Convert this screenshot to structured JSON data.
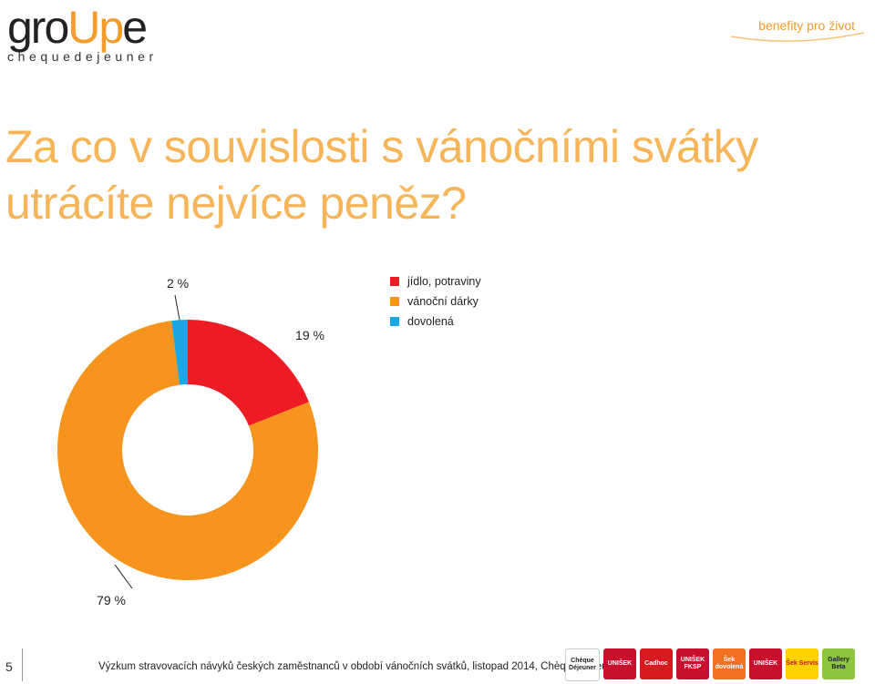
{
  "header": {
    "logo_main": "gro",
    "logo_up": "Up",
    "logo_e": "e",
    "logo_sub": "chequedejeuner",
    "tagline": "benefity pro život"
  },
  "title_line1": "Za co v souvislosti s vánočními svátky",
  "title_line2": "utrácíte nejvíce peněz?",
  "chart_data": {
    "type": "pie",
    "donut": true,
    "categories": [
      "jídlo, potraviny",
      "vánoční dárky",
      "dovolená"
    ],
    "values": [
      19,
      79,
      2
    ],
    "labels": [
      "19 %",
      "79 %",
      "2 %"
    ],
    "colors": [
      "#ed1c24",
      "#f7941e",
      "#1ba7e1"
    ],
    "legend_position": "top-right"
  },
  "footer": {
    "page_number": "5",
    "source": "Výzkum stravovacích návyků českých zaměstnanců v období vánočních svátků, listopad 2014, Chèque Déjeuner",
    "brands": [
      {
        "name": "Chèque Déjeuner",
        "color": "#ffffff",
        "text_color": "#222222"
      },
      {
        "name": "UNIŠEK",
        "color": "#c8102e",
        "text_color": "#ffffff"
      },
      {
        "name": "Cadhoc",
        "color": "#d71920",
        "text_color": "#ffffff"
      },
      {
        "name": "UNIŠEK FKSP",
        "color": "#c8102e",
        "text_color": "#ffffff"
      },
      {
        "name": "Šek dovolená",
        "color": "#f37021",
        "text_color": "#ffffff"
      },
      {
        "name": "UNIŠEK",
        "color": "#c8102e",
        "text_color": "#ffffff"
      },
      {
        "name": "Šek Servis",
        "color": "#ffd200",
        "text_color": "#c8102e"
      },
      {
        "name": "Gallery Beta",
        "color": "#8dc63f",
        "text_color": "#222222"
      }
    ]
  }
}
